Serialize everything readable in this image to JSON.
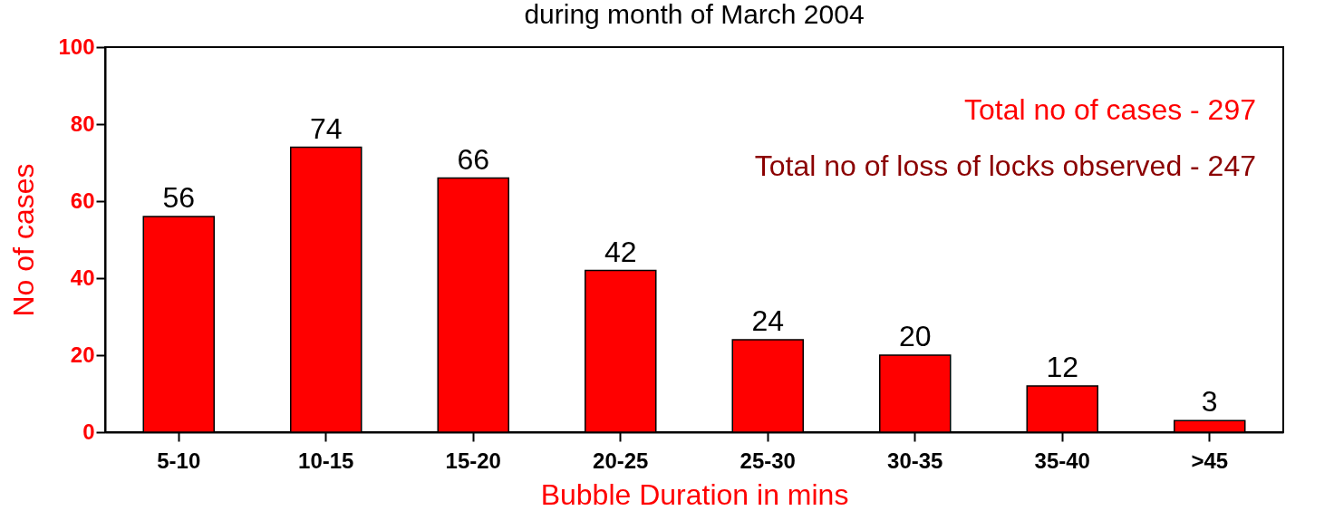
{
  "chart_data": {
    "type": "bar",
    "title": "during month of March 2004",
    "xlabel": "Bubble Duration in mins",
    "ylabel": "No of cases",
    "categories": [
      "5-10",
      "10-15",
      "15-20",
      "20-25",
      "25-30",
      "30-35",
      "35-40",
      ">45"
    ],
    "values": [
      56,
      74,
      66,
      42,
      24,
      20,
      12,
      3
    ],
    "color": "#ff0000",
    "ylim": [
      0,
      100
    ],
    "yticks": [
      0,
      20,
      40,
      60,
      80,
      100
    ],
    "data_labels": true,
    "grid": false,
    "annotations": [
      "Total no of cases - 297",
      "Total no of loss of locks observed - 247"
    ]
  }
}
